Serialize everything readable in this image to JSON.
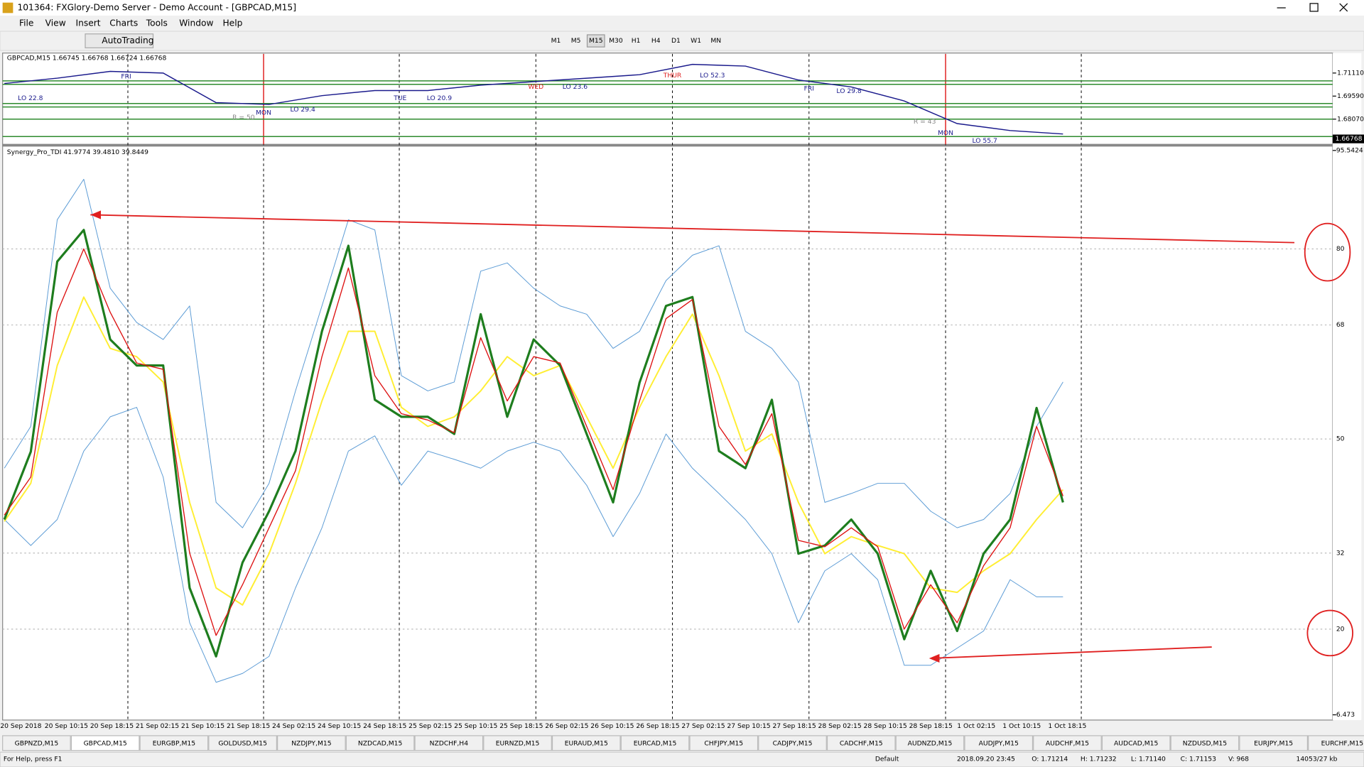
{
  "window": {
    "title": "101364: FXGlory-Demo Server - Demo Account - [GBPCAD,M15]"
  },
  "menu": [
    "File",
    "View",
    "Insert",
    "Charts",
    "Tools",
    "Window",
    "Help"
  ],
  "toolbar": {
    "autotrading": "AutoTrading",
    "timeframes": [
      "M1",
      "M5",
      "M15",
      "M30",
      "H1",
      "H4",
      "D1",
      "W1",
      "MN"
    ]
  },
  "price_chart": {
    "label": "GBPCAD,M15  1.66745 1.66768 1.66724 1.66768",
    "ylim": [
      1.6641,
      1.7237
    ],
    "yticks": [
      {
        "value": 1.7111,
        "label": "1.71110"
      },
      {
        "value": 1.6959,
        "label": "1.69590"
      },
      {
        "value": 1.6807,
        "label": "1.68070"
      }
    ],
    "current_price": 1.66768,
    "series": [
      {
        "color": "#1a1a8c",
        "values": [
          1.7042,
          1.7077,
          1.7122,
          1.7111,
          1.6916,
          1.6904,
          1.6962,
          1.6996,
          1.6996,
          1.7031,
          1.7054,
          1.7077,
          1.71,
          1.7168,
          1.7157,
          1.7065,
          1.7019,
          1.6927,
          1.6778,
          1.6732,
          1.6709
        ]
      }
    ],
    "annotations": [
      "FRI",
      "MON",
      "TUE",
      "WED",
      "THUR",
      "FRI",
      "MON",
      "LO 22.8",
      "LO 29.4",
      "LO 20.9",
      "LO 23.6",
      "LO 52.3",
      "LO 29.8",
      "LO 55.7",
      "R = 50",
      "R = 43"
    ]
  },
  "indicator": {
    "label": "Synergy_Pro_TDI 41.9774 39.4810 39.8449",
    "ylim": [
      6.473,
      95.5424
    ],
    "yticks": [
      95.5424,
      80,
      68,
      50,
      32,
      20,
      6.473
    ],
    "grid": true,
    "series": [
      {
        "color": "#5b9bd5",
        "values": [
          45.4,
          52,
          84.6,
          91,
          73.8,
          68.4,
          65.7,
          71,
          40,
          36,
          43,
          57.6,
          71,
          84.6,
          83,
          60,
          57.6,
          59,
          76.5,
          77.8,
          73.8,
          71,
          69.7,
          64.3,
          67,
          75,
          79,
          80.5,
          67,
          64.3,
          59,
          40,
          41.4,
          43,
          43,
          38.6,
          36,
          37.3,
          41.4,
          52,
          59
        ]
      },
      {
        "color": "#5b9bd5",
        "values": [
          37.3,
          33.2,
          37.3,
          48.1,
          53.5,
          55,
          44,
          21,
          11.6,
          13,
          15.7,
          26.5,
          36,
          48.1,
          50.5,
          42.7,
          48.1,
          46.8,
          45.4,
          48.1,
          49.5,
          48.1,
          42.7,
          34.6,
          41.4,
          50.8,
          45.4,
          41.4,
          37.3,
          31.9,
          21,
          29.2,
          31.9,
          27.8,
          14.3,
          14.3,
          17,
          19.7,
          27.8,
          25.1,
          25.1
        ]
      },
      {
        "color": "#ffee33",
        "values": [
          37,
          43,
          61.6,
          72.4,
          64.3,
          63,
          59,
          40,
          26.5,
          23.8,
          31.9,
          43,
          56,
          67,
          67,
          55,
          52,
          53.5,
          57.6,
          63,
          60,
          61.6,
          53.5,
          45.4,
          55,
          63,
          69.7,
          60,
          48.1,
          50.8,
          40,
          31.9,
          34.6,
          33.2,
          31.9,
          26.5,
          25.8,
          29.2,
          31.9,
          37.3,
          42
        ]
      },
      {
        "color": "#1e7d1e",
        "values": [
          37.3,
          48,
          78,
          83,
          65.7,
          61.6,
          61.6,
          26.5,
          15.7,
          30.5,
          38.6,
          48.1,
          67,
          80.5,
          56.2,
          53.5,
          53.5,
          50.8,
          69.7,
          53.5,
          65.7,
          61.6,
          50.8,
          40,
          58.9,
          71,
          72.4,
          48.1,
          45.4,
          56.2,
          31.9,
          33.2,
          37.3,
          31.9,
          18.4,
          29.2,
          19.7,
          31.9,
          37.3,
          54.9,
          40
        ]
      },
      {
        "color": "#dd1111",
        "values": [
          38,
          44,
          70,
          80,
          70,
          62,
          61,
          32,
          19,
          27,
          36,
          45,
          63,
          77,
          60,
          54,
          53,
          51,
          66,
          56,
          63,
          62,
          52,
          42,
          56,
          69,
          72,
          52,
          46,
          54,
          34,
          33,
          36,
          33,
          20,
          27,
          21,
          30,
          36,
          52,
          41
        ]
      }
    ]
  },
  "time_labels": [
    "20 Sep 2018",
    "20 Sep 10:15",
    "20 Sep 18:15",
    "21 Sep 02:15",
    "21 Sep 10:15",
    "21 Sep 18:15",
    "24 Sep 02:15",
    "24 Sep 10:15",
    "24 Sep 18:15",
    "25 Sep 02:15",
    "25 Sep 10:15",
    "25 Sep 18:15",
    "26 Sep 02:15",
    "26 Sep 10:15",
    "26 Sep 18:15",
    "27 Sep 02:15",
    "27 Sep 10:15",
    "27 Sep 18:15",
    "28 Sep 02:15",
    "28 Sep 10:15",
    "28 Sep 18:15",
    "1 Oct 02:15",
    "1 Oct 10:15",
    "1 Oct 18:15"
  ],
  "tabs": [
    "GBPNZD,M15",
    "GBPCAD,M15",
    "EURGBP,M15",
    "GOLDUSD,M15",
    "NZDJPY,M15",
    "NZDCAD,M15",
    "NZDCHF,H4",
    "EURNZD,M15",
    "EURAUD,M15",
    "EURCAD,M15",
    "CHFJPY,M15",
    "CADJPY,M15",
    "CADCHF,M15",
    "AUDNZD,M15",
    "AUDJPY,M15",
    "AUDCHF,M15",
    "AUDCAD,M15",
    "NZDUSD,M15",
    "EURJPY,M15",
    "EURCHF,M15"
  ],
  "status": [
    "For Help, press F1",
    "Default",
    "2018.09.20 23:45",
    "O: 1.71214",
    "H: 1.71232",
    "L: 1.71140",
    "C: 1.71153",
    "V: 968",
    "14053/27 kb"
  ]
}
